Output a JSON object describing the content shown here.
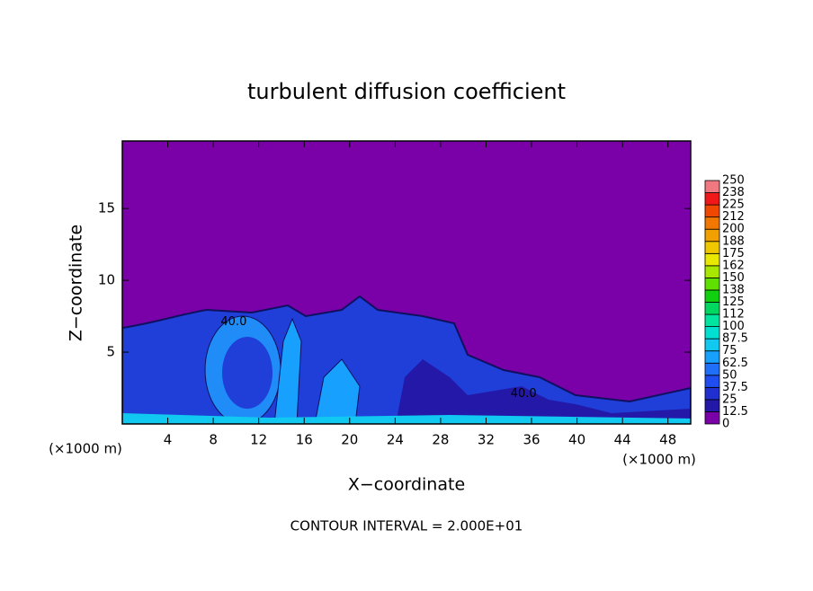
{
  "chart_data": {
    "type": "contour",
    "title": "turbulent diffusion coefficient",
    "x_label": "X−coordinate",
    "y_label": "Z−coordinate",
    "unit_label": "(×1000 m)",
    "footer": "CONTOUR INTERVAL = 2.000E+01",
    "xlim": [
      0,
      50
    ],
    "xticks": [
      4,
      8,
      12,
      16,
      20,
      24,
      28,
      32,
      36,
      40,
      44,
      48
    ],
    "ylim": [
      0,
      19.7
    ],
    "yticks": [
      5,
      10,
      15
    ],
    "annotations": [
      {
        "text": "40.0",
        "x": 9.8,
        "y": 7.1
      },
      {
        "text": "40.0",
        "x": 35.3,
        "y": 2.1
      }
    ],
    "colorbar": {
      "levels": [
        0,
        12.5,
        25,
        37.5,
        50,
        62.5,
        75,
        87.5,
        100,
        {
          "value": 112.5,
          "label": "112"
        },
        125,
        {
          "value": 137.5,
          "label": "138"
        },
        150,
        {
          "value": 162.5,
          "label": "162"
        },
        175,
        {
          "value": 187.5,
          "label": "188"
        },
        200,
        {
          "value": 212.5,
          "label": "212"
        },
        225,
        {
          "value": 237.5,
          "label": "238"
        },
        250
      ],
      "colors": [
        "#7a00a8",
        "#2418a8",
        "#1f2fd0",
        "#1f4ef0",
        "#1f6ff8",
        "#18a0ff",
        "#10c8f0",
        "#00e0d0",
        "#00e6a0",
        "#00d860",
        "#10d010",
        "#60e000",
        "#a8e800",
        "#e8e800",
        "#f0c800",
        "#f0a000",
        "#f07800",
        "#f04800",
        "#f01818",
        "#f07880"
      ]
    }
  }
}
